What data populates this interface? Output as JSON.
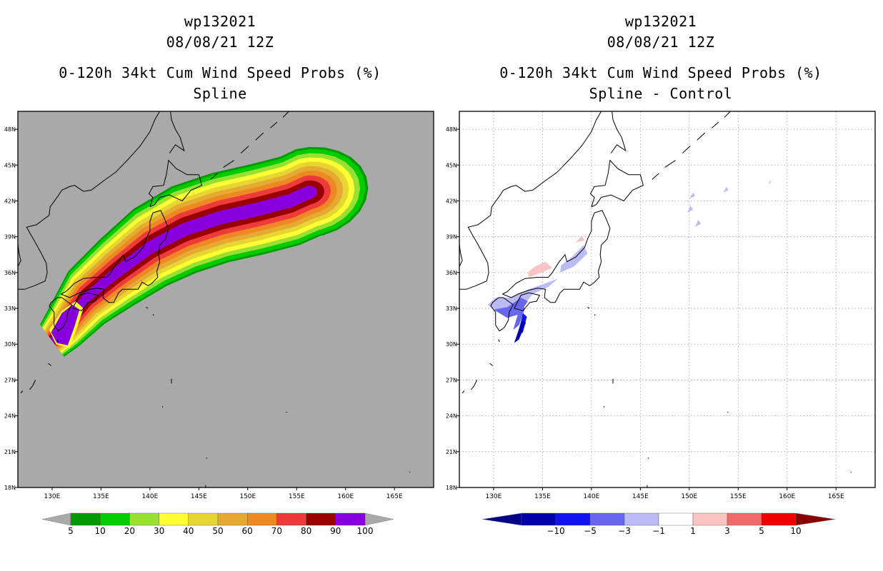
{
  "panels": [
    {
      "id": "left",
      "title_line1": "wp132021",
      "title_line2": "08/08/21 12Z",
      "title_line3": "0-120h 34kt Cum Wind Speed Probs (%)",
      "title_line4": "Spline",
      "background": "#a9a9a9"
    },
    {
      "id": "right",
      "title_line1": "wp132021",
      "title_line2": "08/08/21 12Z",
      "title_line3": "0-120h 34kt Cum Wind Speed Probs (%)",
      "title_line4": "Spline - Control",
      "background": "#ffffff"
    }
  ],
  "chart_data": [
    {
      "type": "heatmap",
      "title": "0-120h 34kt Cum Wind Speed Probs (%)",
      "subtitle": "Spline",
      "x_ticks": [
        "130E",
        "135E",
        "140E",
        "145E",
        "150E",
        "155E",
        "160E",
        "165E"
      ],
      "y_ticks": [
        "18N",
        "21N",
        "24N",
        "27N",
        "30N",
        "33N",
        "36N",
        "39N",
        "42N",
        "45N",
        "48N"
      ],
      "xlim": [
        126.5,
        169
      ],
      "ylim": [
        18,
        49.5
      ],
      "grid": false,
      "colorbar": {
        "labels": [
          "5",
          "10",
          "20",
          "30",
          "40",
          "50",
          "60",
          "70",
          "80",
          "90",
          "100"
        ],
        "colors": [
          "#009900",
          "#00cc00",
          "#99e033",
          "#ffff33",
          "#e6d633",
          "#e6aa33",
          "#ee8822",
          "#ee3a3a",
          "#990000",
          "#8800dd"
        ],
        "under_color": "#a9a9a9",
        "over_color": "#a9a9a9"
      },
      "contour_levels": [
        5,
        10,
        20,
        30,
        40,
        50,
        60,
        70,
        80,
        90
      ]
    },
    {
      "type": "heatmap",
      "title": "0-120h 34kt Cum Wind Speed Probs (%)",
      "subtitle": "Spline - Control",
      "x_ticks": [
        "130E",
        "135E",
        "140E",
        "145E",
        "150E",
        "155E",
        "160E",
        "165E"
      ],
      "y_ticks": [
        "18N",
        "21N",
        "24N",
        "27N",
        "30N",
        "33N",
        "36N",
        "39N",
        "42N",
        "45N",
        "48N"
      ],
      "xlim": [
        126.5,
        169
      ],
      "ylim": [
        18,
        49.5
      ],
      "grid": true,
      "colorbar": {
        "labels": [
          "-10",
          "-5",
          "-3",
          "-1",
          "1",
          "3",
          "5",
          "10"
        ],
        "colors": [
          "#0000aa",
          "#1111ee",
          "#6666ee",
          "#bbbbf5",
          "#ffffff",
          "#f8c4c4",
          "#f06a6a",
          "#ee0000"
        ],
        "under_color": "#000088",
        "over_color": "#880000"
      }
    }
  ]
}
